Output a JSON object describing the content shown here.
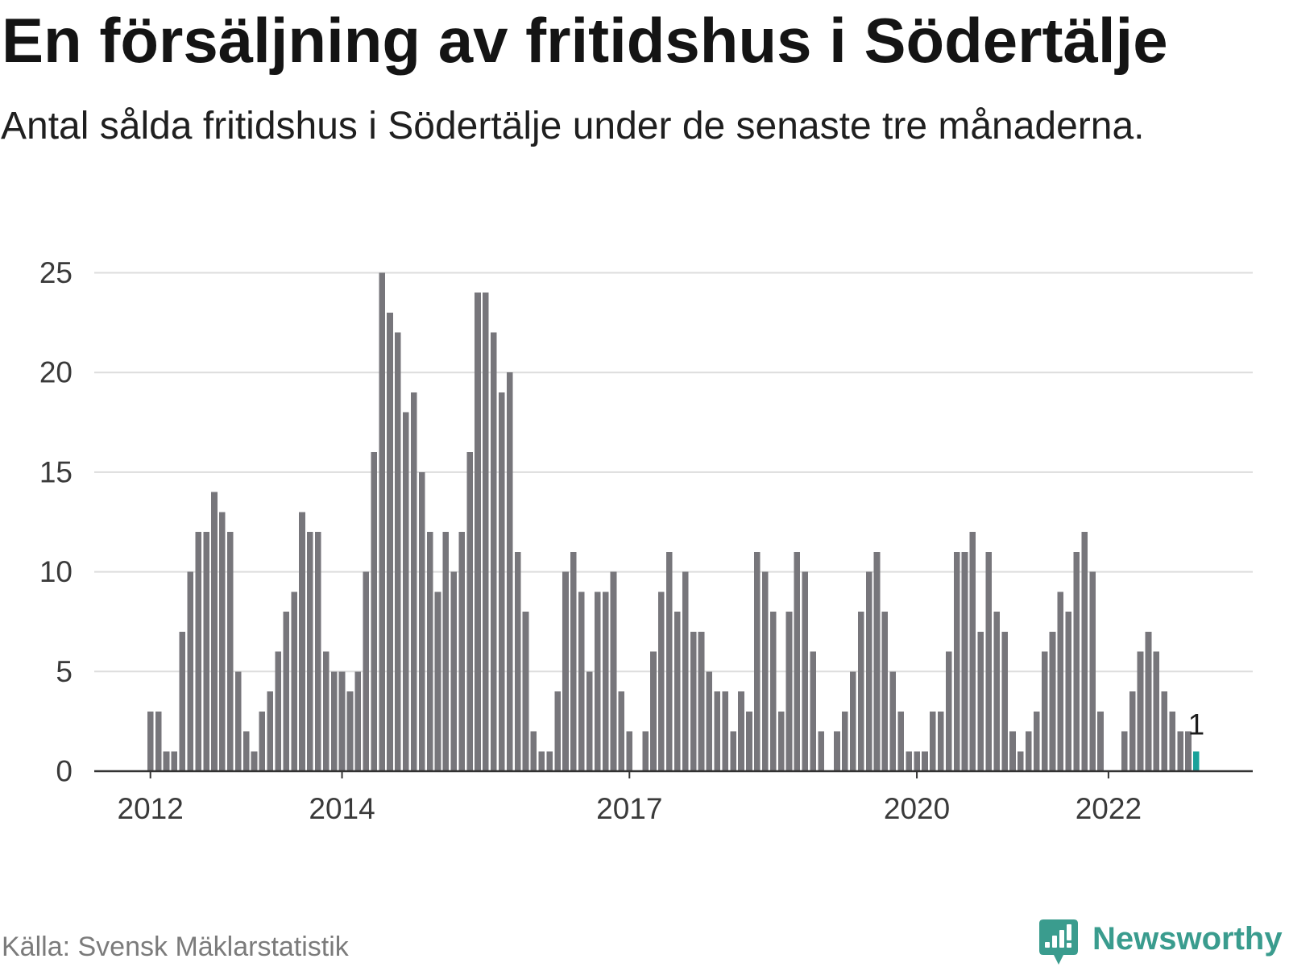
{
  "chart_data": {
    "type": "bar",
    "title": "En försäljning av fritidshus i Södertälje",
    "subtitle": "Antal sålda fritidshus i Södertälje under de senaste tre månaderna.",
    "x": [
      "2012-01",
      "2012-02",
      "2012-03",
      "2012-04",
      "2012-05",
      "2012-06",
      "2012-07",
      "2012-08",
      "2012-09",
      "2012-10",
      "2012-11",
      "2012-12",
      "2013-01",
      "2013-02",
      "2013-03",
      "2013-04",
      "2013-05",
      "2013-06",
      "2013-07",
      "2013-08",
      "2013-09",
      "2013-10",
      "2013-11",
      "2013-12",
      "2014-01",
      "2014-02",
      "2014-03",
      "2014-04",
      "2014-05",
      "2014-06",
      "2014-07",
      "2014-08",
      "2014-09",
      "2014-10",
      "2014-11",
      "2014-12",
      "2015-01",
      "2015-02",
      "2015-03",
      "2015-04",
      "2015-05",
      "2015-06",
      "2015-07",
      "2015-08",
      "2015-09",
      "2015-10",
      "2015-11",
      "2015-12",
      "2016-01",
      "2016-02",
      "2016-03",
      "2016-04",
      "2016-05",
      "2016-06",
      "2016-07",
      "2016-08",
      "2016-09",
      "2016-10",
      "2016-11",
      "2016-12",
      "2017-01",
      "2017-02",
      "2017-03",
      "2017-04",
      "2017-05",
      "2017-06",
      "2017-07",
      "2017-08",
      "2017-09",
      "2017-10",
      "2017-11",
      "2017-12",
      "2018-01",
      "2018-02",
      "2018-03",
      "2018-04",
      "2018-05",
      "2018-06",
      "2018-07",
      "2018-08",
      "2018-09",
      "2018-10",
      "2018-11",
      "2018-12",
      "2019-01",
      "2019-02",
      "2019-03",
      "2019-04",
      "2019-05",
      "2019-06",
      "2019-07",
      "2019-08",
      "2019-09",
      "2019-10",
      "2019-11",
      "2019-12",
      "2020-01",
      "2020-02",
      "2020-03",
      "2020-04",
      "2020-05",
      "2020-06",
      "2020-07",
      "2020-08",
      "2020-09",
      "2020-10",
      "2020-11",
      "2020-12",
      "2021-01",
      "2021-02",
      "2021-03",
      "2021-04",
      "2021-05",
      "2021-06",
      "2021-07",
      "2021-08",
      "2021-09",
      "2021-10",
      "2021-11",
      "2021-12",
      "2022-01",
      "2022-02",
      "2022-03",
      "2022-04",
      "2022-05",
      "2022-06",
      "2022-07",
      "2022-08",
      "2022-09",
      "2022-10",
      "2022-11",
      "2022-12"
    ],
    "values": [
      3,
      3,
      1,
      1,
      7,
      10,
      12,
      12,
      14,
      13,
      12,
      5,
      2,
      1,
      3,
      4,
      6,
      8,
      9,
      13,
      12,
      12,
      6,
      5,
      5,
      4,
      5,
      10,
      16,
      25,
      23,
      22,
      18,
      19,
      15,
      12,
      9,
      12,
      10,
      12,
      16,
      24,
      24,
      22,
      19,
      20,
      11,
      8,
      2,
      1,
      1,
      4,
      10,
      11,
      9,
      5,
      9,
      9,
      10,
      4,
      2,
      0,
      2,
      6,
      9,
      11,
      8,
      10,
      7,
      7,
      5,
      4,
      4,
      2,
      4,
      3,
      11,
      10,
      8,
      3,
      8,
      11,
      10,
      6,
      2,
      0,
      2,
      3,
      5,
      8,
      10,
      11,
      8,
      5,
      3,
      1,
      1,
      1,
      3,
      3,
      6,
      11,
      11,
      12,
      7,
      11,
      8,
      7,
      2,
      1,
      2,
      3,
      6,
      7,
      9,
      8,
      11,
      12,
      10,
      3,
      0,
      0,
      2,
      4,
      6,
      7,
      6,
      4,
      3,
      2,
      2,
      1
    ],
    "ylim": [
      0,
      25
    ],
    "yticks": [
      0,
      5,
      10,
      15,
      20,
      25
    ],
    "xticks": [
      {
        "label": "2012",
        "at": "2012-01"
      },
      {
        "label": "2014",
        "at": "2014-01"
      },
      {
        "label": "2017",
        "at": "2017-01"
      },
      {
        "label": "2020",
        "at": "2020-01"
      },
      {
        "label": "2022",
        "at": "2022-01"
      }
    ],
    "grid": true,
    "highlight": {
      "x": "2022-12",
      "label": "1"
    }
  },
  "source": "Källa: Svensk Mäklarstatistik",
  "logo": {
    "text": "Newsworthy",
    "icon": "newsworthy-logo-icon"
  },
  "colors": {
    "bar": "#77767b",
    "highlight_bar": "#19a19a",
    "gridline": "#dddddd",
    "axis": "#333333",
    "logo": "#3a9c8e"
  }
}
